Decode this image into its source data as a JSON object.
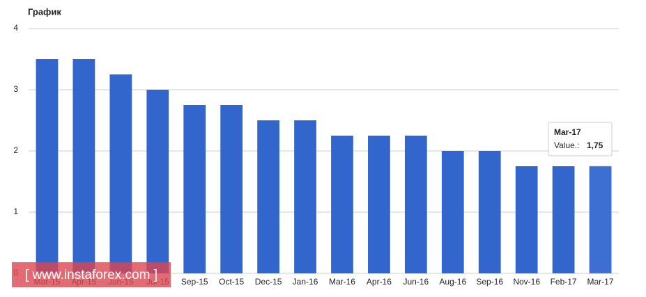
{
  "chart_data": {
    "type": "bar",
    "title": "График",
    "categories": [
      "Mar-15",
      "Apr-15",
      "Jun-15",
      "Jul-15",
      "Sep-15",
      "Oct-15",
      "Dec-15",
      "Jan-16",
      "Mar-16",
      "Apr-16",
      "Jun-16",
      "Aug-16",
      "Sep-16",
      "Nov-16",
      "Feb-17",
      "Mar-17"
    ],
    "values": [
      3.5,
      3.5,
      3.25,
      3,
      2.75,
      2.75,
      2.5,
      2.5,
      2.25,
      2.25,
      2.25,
      2,
      2,
      1.75,
      1.75,
      1.75
    ],
    "color": "#3366cc",
    "ylim": [
      0,
      4
    ],
    "yticks": [
      0,
      1,
      2,
      3,
      4
    ],
    "grid": true,
    "tooltip": {
      "title": "Mar-17",
      "label": "Value.:",
      "value_label": "1,75"
    },
    "watermark": "[ www.instaforex.com ]"
  }
}
